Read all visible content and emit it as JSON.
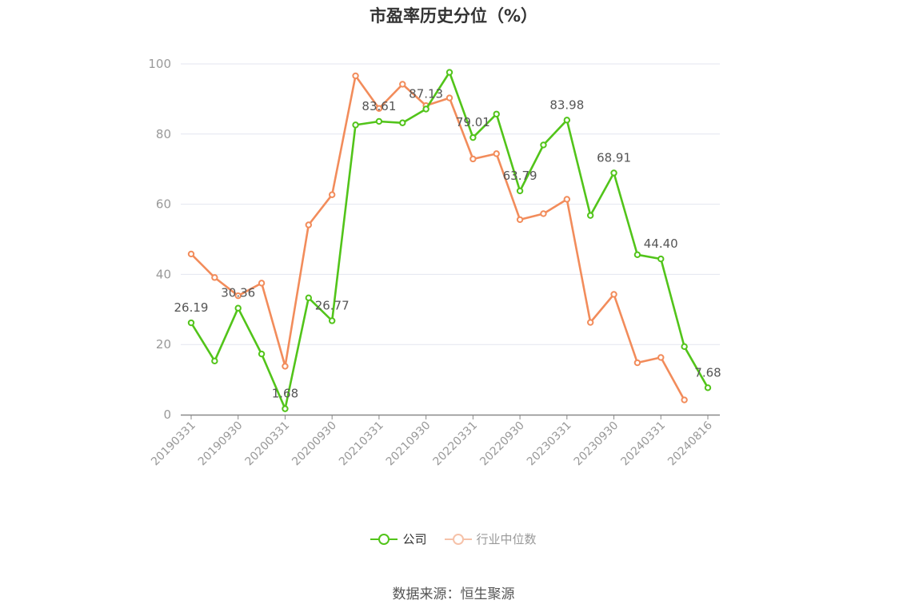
{
  "chart_data": {
    "type": "line",
    "title": "市盈率历史分位（%）",
    "xlabel": "",
    "ylabel": "",
    "ylim": [
      0,
      100
    ],
    "yticks": [
      0,
      20,
      40,
      60,
      80,
      100
    ],
    "x_tick_labels": [
      "20190331",
      "20190930",
      "20200331",
      "20200930",
      "20210331",
      "20210930",
      "20220331",
      "20220930",
      "20230331",
      "20230930",
      "20240331",
      "20240816"
    ],
    "categories": [
      "20190331",
      "20190630",
      "20190930",
      "20191231",
      "20200331",
      "20200630",
      "20200930",
      "20201231",
      "20210331",
      "20210630",
      "20210930",
      "20211231",
      "20220331",
      "20220630",
      "20220930",
      "20221231",
      "20230331",
      "20230630",
      "20230930",
      "20231231",
      "20240331",
      "20240630",
      "20240816"
    ],
    "series": [
      {
        "name": "公司",
        "color": "#52c41a",
        "values": [
          26.19,
          15.3,
          30.36,
          17.3,
          1.68,
          33.3,
          26.77,
          82.6,
          83.61,
          83.2,
          87.13,
          97.6,
          79.01,
          85.7,
          63.79,
          76.9,
          83.98,
          56.8,
          68.91,
          45.6,
          44.4,
          19.4,
          7.68
        ]
      },
      {
        "name": "行业中位数",
        "color": "#f28c5b",
        "values": [
          45.8,
          39.1,
          33.9,
          37.5,
          13.8,
          54.1,
          62.7,
          96.6,
          87.3,
          94.2,
          88.1,
          90.3,
          72.9,
          74.4,
          55.6,
          57.3,
          61.4,
          26.3,
          34.3,
          14.8,
          16.3,
          4.2,
          null
        ]
      }
    ],
    "data_labels": [
      {
        "series": 0,
        "index": 0,
        "text": "26.19"
      },
      {
        "series": 0,
        "index": 2,
        "text": "30.36"
      },
      {
        "series": 0,
        "index": 4,
        "text": "1.68"
      },
      {
        "series": 0,
        "index": 6,
        "text": "26.77"
      },
      {
        "series": 0,
        "index": 8,
        "text": "83.61"
      },
      {
        "series": 0,
        "index": 10,
        "text": "87.13"
      },
      {
        "series": 0,
        "index": 12,
        "text": "79.01"
      },
      {
        "series": 0,
        "index": 14,
        "text": "63.79"
      },
      {
        "series": 0,
        "index": 16,
        "text": "83.98"
      },
      {
        "series": 0,
        "index": 18,
        "text": "68.91"
      },
      {
        "series": 0,
        "index": 20,
        "text": "44.40"
      },
      {
        "series": 0,
        "index": 22,
        "text": "7.68"
      }
    ],
    "grid": true,
    "legend_position": "bottom"
  },
  "source_text": "数据来源：恒生聚源"
}
